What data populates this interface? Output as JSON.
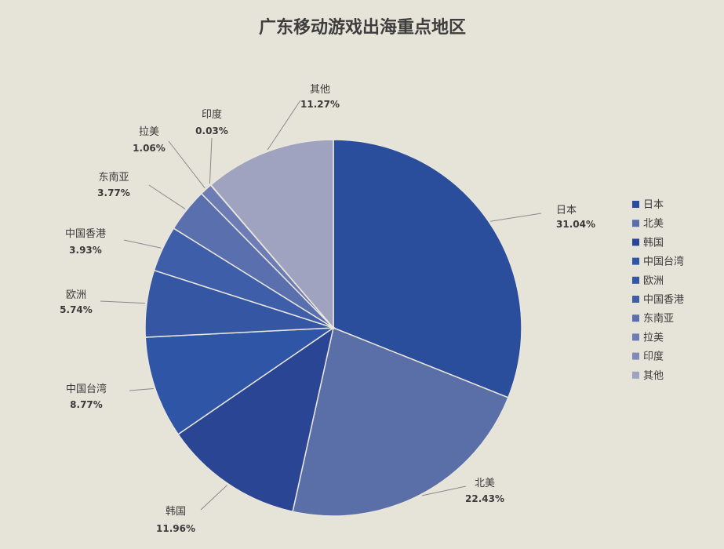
{
  "chart_data": {
    "type": "pie",
    "title": "广东移动游戏出海重点地区",
    "slices": [
      {
        "label": "日本",
        "value": 31.04,
        "pct_text": "31.04%",
        "color": "#2a4d9c"
      },
      {
        "label": "北美",
        "value": 22.43,
        "pct_text": "22.43%",
        "color": "#5a6fa7"
      },
      {
        "label": "韩国",
        "value": 11.96,
        "pct_text": "11.96%",
        "color": "#2b4595"
      },
      {
        "label": "中国台湾",
        "value": 8.77,
        "pct_text": "8.77%",
        "color": "#2e55a6"
      },
      {
        "label": "欧洲",
        "value": 5.74,
        "pct_text": "5.74%",
        "color": "#3456a3"
      },
      {
        "label": "中国香港",
        "value": 3.93,
        "pct_text": "3.93%",
        "color": "#3e5eaa"
      },
      {
        "label": "东南亚",
        "value": 3.77,
        "pct_text": "3.77%",
        "color": "#5a6fae"
      },
      {
        "label": "拉美",
        "value": 1.06,
        "pct_text": "1.06%",
        "color": "#6d7cb4"
      },
      {
        "label": "印度",
        "value": 0.03,
        "pct_text": "0.03%",
        "color": "#8189b6"
      },
      {
        "label": "其他",
        "value": 11.27,
        "pct_text": "11.27%",
        "color": "#9fa3bf"
      }
    ],
    "legend_position": "right"
  }
}
